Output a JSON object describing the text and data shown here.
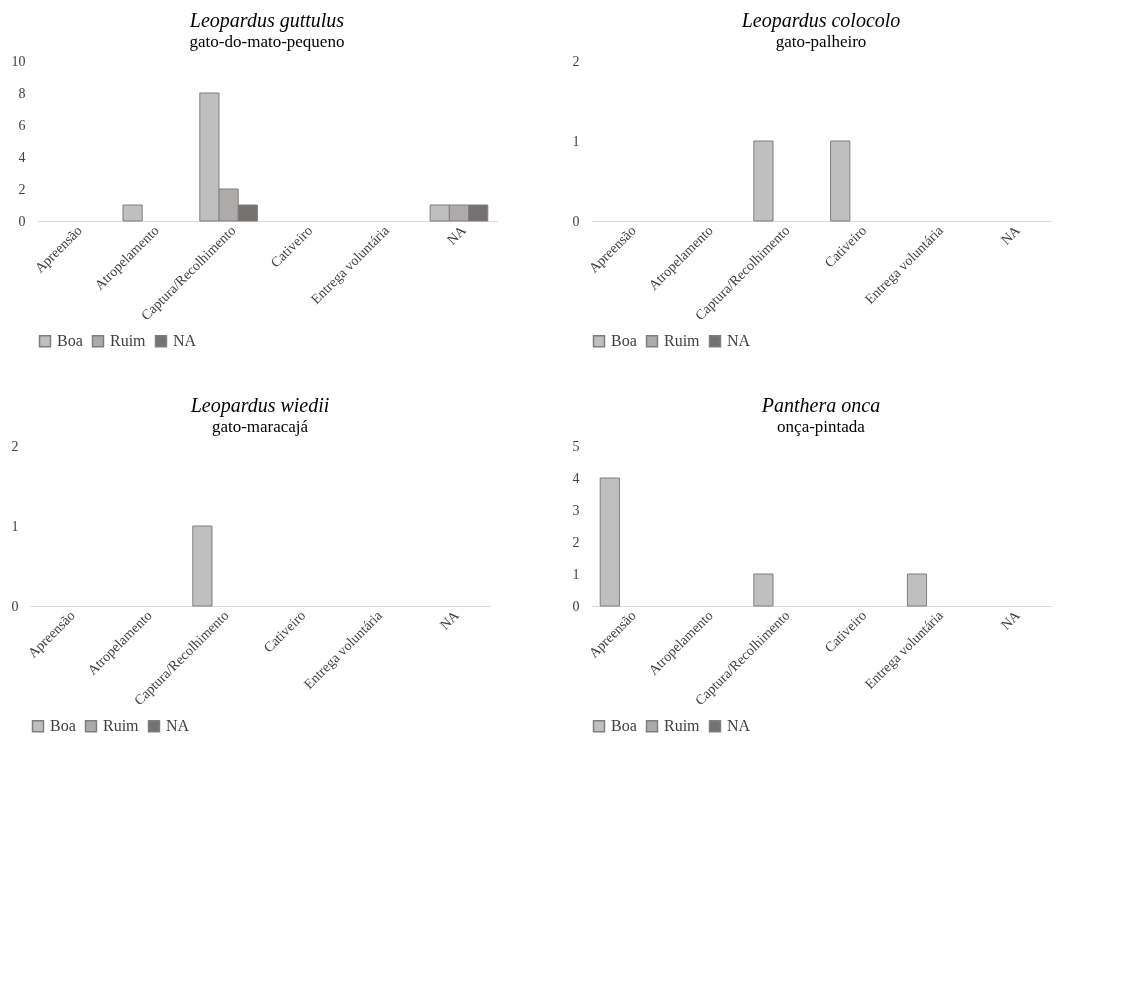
{
  "chart_data": [
    {
      "type": "bar",
      "title": "Leopardus guttulus",
      "subtitle": "gato-do-mato-pequeno",
      "categories": [
        "Apreensão",
        "Atropelamento",
        "Captura/Recolhimento",
        "Cativeiro",
        "Entrega voluntária",
        "NA"
      ],
      "series": [
        {
          "name": "Boa",
          "color": "#bfbfbf",
          "values": [
            0,
            1,
            8,
            0,
            0,
            1
          ]
        },
        {
          "name": "Ruim",
          "color": "#aeaaaa",
          "values": [
            0,
            0,
            2,
            0,
            0,
            1
          ]
        },
        {
          "name": "NA",
          "color": "#767171",
          "values": [
            0,
            0,
            1,
            0,
            0,
            1
          ]
        }
      ],
      "ylim": [
        0,
        10
      ],
      "yticks": [
        0,
        2,
        4,
        6,
        8,
        10
      ],
      "grid": false,
      "legend": "bottom"
    },
    {
      "type": "bar",
      "title": "Leopardus colocolo",
      "subtitle": "gato-palheiro",
      "categories": [
        "Apreensão",
        "Atropelamento",
        "Captura/Recolhimento",
        "Cativeiro",
        "Entrega voluntária",
        "NA"
      ],
      "series": [
        {
          "name": "Boa",
          "color": "#bfbfbf",
          "values": [
            0,
            0,
            1,
            1,
            0,
            0
          ]
        },
        {
          "name": "Ruim",
          "color": "#aeaaaa",
          "values": [
            0,
            0,
            0,
            0,
            0,
            0
          ]
        },
        {
          "name": "NA",
          "color": "#767171",
          "values": [
            0,
            0,
            0,
            0,
            0,
            0
          ]
        }
      ],
      "ylim": [
        0,
        2
      ],
      "yticks": [
        0,
        1,
        2
      ],
      "grid": false,
      "legend": "bottom"
    },
    {
      "type": "bar",
      "title": "Leopardus wiedii",
      "subtitle": "gato-maracajá",
      "categories": [
        "Apreensão",
        "Atropelamento",
        "Captura/Recolhimento",
        "Cativeiro",
        "Entrega voluntária",
        "NA"
      ],
      "series": [
        {
          "name": "Boa",
          "color": "#bfbfbf",
          "values": [
            0,
            0,
            1,
            0,
            0,
            0
          ]
        },
        {
          "name": "Ruim",
          "color": "#aeaaaa",
          "values": [
            0,
            0,
            0,
            0,
            0,
            0
          ]
        },
        {
          "name": "NA",
          "color": "#767171",
          "values": [
            0,
            0,
            0,
            0,
            0,
            0
          ]
        }
      ],
      "ylim": [
        0,
        2
      ],
      "yticks": [
        0,
        1,
        2
      ],
      "grid": false,
      "legend": "bottom"
    },
    {
      "type": "bar",
      "title": "Panthera onca",
      "subtitle": "onça-pintada",
      "categories": [
        "Apreensão",
        "Atropelamento",
        "Captura/Recolhimento",
        "Cativeiro",
        "Entrega voluntária",
        "NA"
      ],
      "series": [
        {
          "name": "Boa",
          "color": "#bfbfbf",
          "values": [
            4,
            0,
            1,
            0,
            1,
            0
          ]
        },
        {
          "name": "Ruim",
          "color": "#aeaaaa",
          "values": [
            0,
            0,
            0,
            0,
            0,
            0
          ]
        },
        {
          "name": "NA",
          "color": "#767171",
          "values": [
            0,
            0,
            0,
            0,
            0,
            0
          ]
        }
      ],
      "ylim": [
        0,
        5
      ],
      "yticks": [
        0,
        1,
        2,
        3,
        4,
        5
      ],
      "grid": false,
      "legend": "bottom"
    }
  ]
}
